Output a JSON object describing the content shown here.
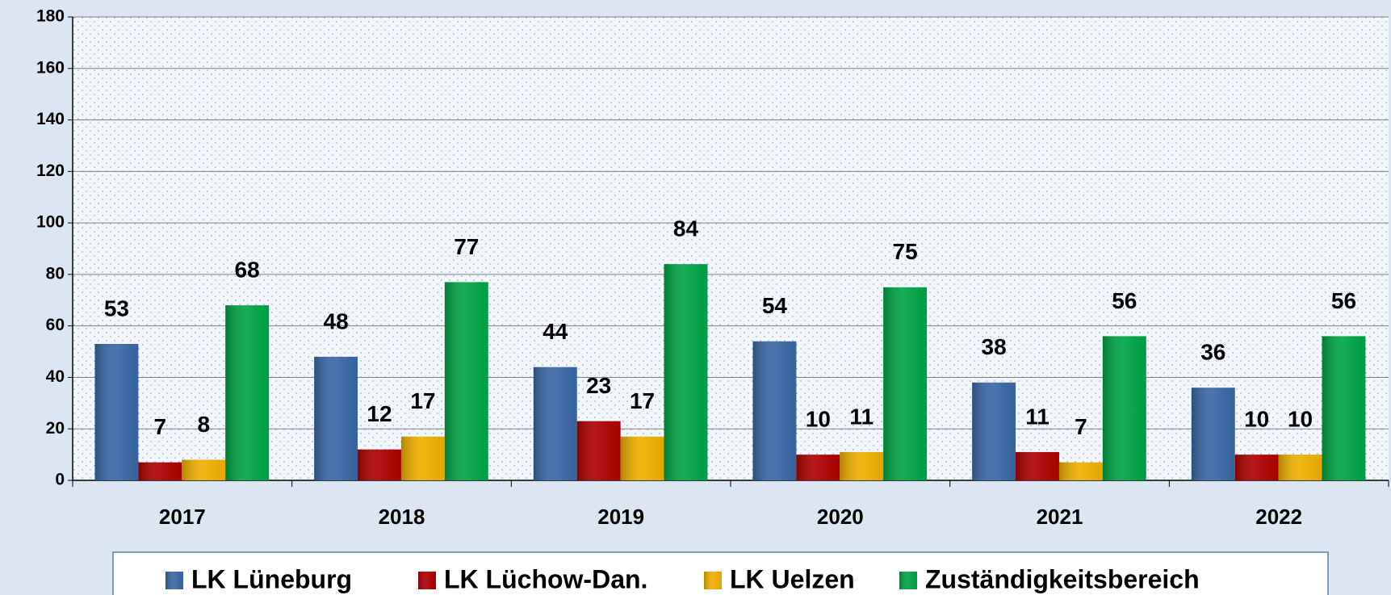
{
  "chart_data": {
    "type": "bar",
    "categories": [
      "2017",
      "2018",
      "2019",
      "2020",
      "2021",
      "2022"
    ],
    "series": [
      {
        "name": "LK Lüneburg",
        "color": "#3a68a6",
        "values": [
          53,
          48,
          44,
          54,
          38,
          36
        ]
      },
      {
        "name": "LK Lüchow-Dan.",
        "color": "#b00000",
        "values": [
          7,
          12,
          23,
          10,
          11,
          10
        ]
      },
      {
        "name": "LK Uelzen",
        "color": "#f0b000",
        "values": [
          8,
          17,
          17,
          11,
          7,
          10
        ]
      },
      {
        "name": "Zuständigkeitsbereich",
        "color": "#00a545",
        "values": [
          68,
          77,
          84,
          75,
          56,
          56
        ]
      }
    ],
    "ylim": [
      0,
      180
    ],
    "yticks": [
      0,
      20,
      40,
      60,
      80,
      100,
      120,
      140,
      160,
      180
    ],
    "grid": true,
    "legend": "bottom"
  }
}
